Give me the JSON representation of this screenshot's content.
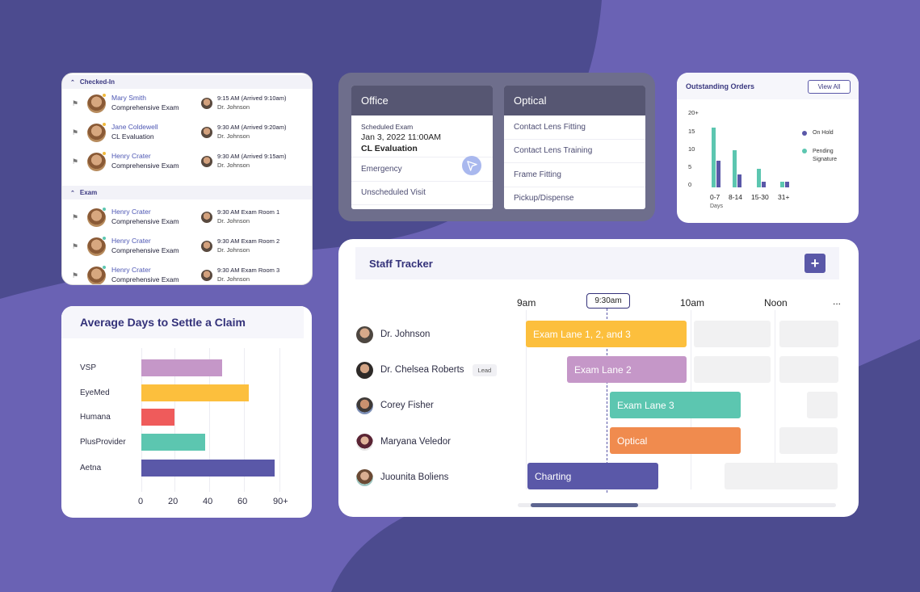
{
  "checkin": {
    "sections": [
      {
        "title": "Checked-In",
        "rows": [
          {
            "name": "Mary Smith",
            "exam": "Comprehensive Exam",
            "time": "9:15 AM (Arrived 9:10am)",
            "doctor": "Dr. Johnson",
            "status_color": "#f1b93a"
          },
          {
            "name": "Jane Coldewell",
            "exam": "CL Evaluation",
            "time": "9:30 AM (Arrived 9:20am)",
            "doctor": "Dr. Johnson",
            "status_color": "#f1b93a"
          },
          {
            "name": "Henry Crater",
            "exam": "Comprehensive Exam",
            "time": "9:30 AM (Arrived 9:15am)",
            "doctor": "Dr. Johnson",
            "status_color": "#f1b93a"
          }
        ]
      },
      {
        "title": "Exam",
        "rows": [
          {
            "name": "Henry Crater",
            "exam": "Comprehensive Exam",
            "time": "9:30 AM Exam Room 1",
            "doctor": "Dr. Johnson",
            "status_color": "#5cc6b0"
          },
          {
            "name": "Henry Crater",
            "exam": "Comprehensive Exam",
            "time": "9:30 AM Exam Room 2",
            "doctor": "Dr. Johnson",
            "status_color": "#5cc6b0"
          },
          {
            "name": "Henry Crater",
            "exam": "Comprehensive Exam",
            "time": "9:30 AM Exam Room 3",
            "doctor": "Dr. Johnson",
            "status_color": "#5cc6b0"
          }
        ]
      }
    ]
  },
  "office": {
    "title": "Office",
    "scheduled_label": "Scheduled Exam",
    "scheduled_date": "Jan 3, 2022 11:00AM",
    "scheduled_type": "CL Evaluation",
    "items": [
      "Emergency",
      "Unscheduled Visit"
    ]
  },
  "optical": {
    "title": "Optical",
    "items": [
      "Contact Lens Fitting",
      "Contact Lens Training",
      "Frame Fitting",
      "Pickup/Dispense"
    ]
  },
  "orders": {
    "title": "Outstanding Orders",
    "view_all": "View All",
    "chart_data": {
      "type": "bar",
      "categories": [
        "0-7",
        "8-14",
        "15-30",
        "31+"
      ],
      "xlabel": "Days",
      "y_ticks": [
        "20+",
        "15",
        "10",
        "5",
        "0"
      ],
      "ylim": [
        0,
        20
      ],
      "series": [
        {
          "name": "On Hold",
          "color": "#5a58a8",
          "values": [
            7.2,
            3.5,
            1.5,
            1.5
          ]
        },
        {
          "name": "Pending Signature",
          "color": "#5cc6b0",
          "values": [
            16,
            9.8,
            5,
            1.5
          ]
        }
      ],
      "legend": "right"
    }
  },
  "avg_days": {
    "title": "Average Days to Settle a Claim",
    "chart_data": {
      "type": "bar",
      "orientation": "horizontal",
      "categories": [
        "VSP",
        "EyeMed",
        "Humana",
        "PlusProvider",
        "Aetna"
      ],
      "values": [
        47,
        62,
        19,
        37,
        77
      ],
      "colors": [
        "#c597c8",
        "#fcbf3d",
        "#ef5b5b",
        "#5cc6b0",
        "#5a58a8"
      ],
      "x_ticks": [
        "0",
        "20",
        "40",
        "60",
        "90+"
      ],
      "xlim": [
        0,
        80
      ]
    }
  },
  "staff": {
    "title": "Staff Tracker",
    "add_label": "+",
    "hours": [
      "9am",
      "10am",
      "Noon",
      "..."
    ],
    "now_label": "9:30am",
    "people": [
      {
        "name": "Dr. Johnson",
        "lead": "",
        "lane": "Exam Lane 1, 2, and 3",
        "color": "#fcbf3d"
      },
      {
        "name": "Dr. Chelsea Roberts",
        "lead": "Lead",
        "lane": "Exam Lane 2",
        "color": "#c597c8"
      },
      {
        "name": "Corey Fisher",
        "lead": "",
        "lane": "Exam Lane 3",
        "color": "#5cc6b0"
      },
      {
        "name": "Maryana Veledor",
        "lead": "",
        "lane": "Optical",
        "color": "#f08b4e"
      },
      {
        "name": "Juounita Boliens",
        "lead": "",
        "lane": "Charting",
        "color": "#5a58a8"
      }
    ]
  }
}
